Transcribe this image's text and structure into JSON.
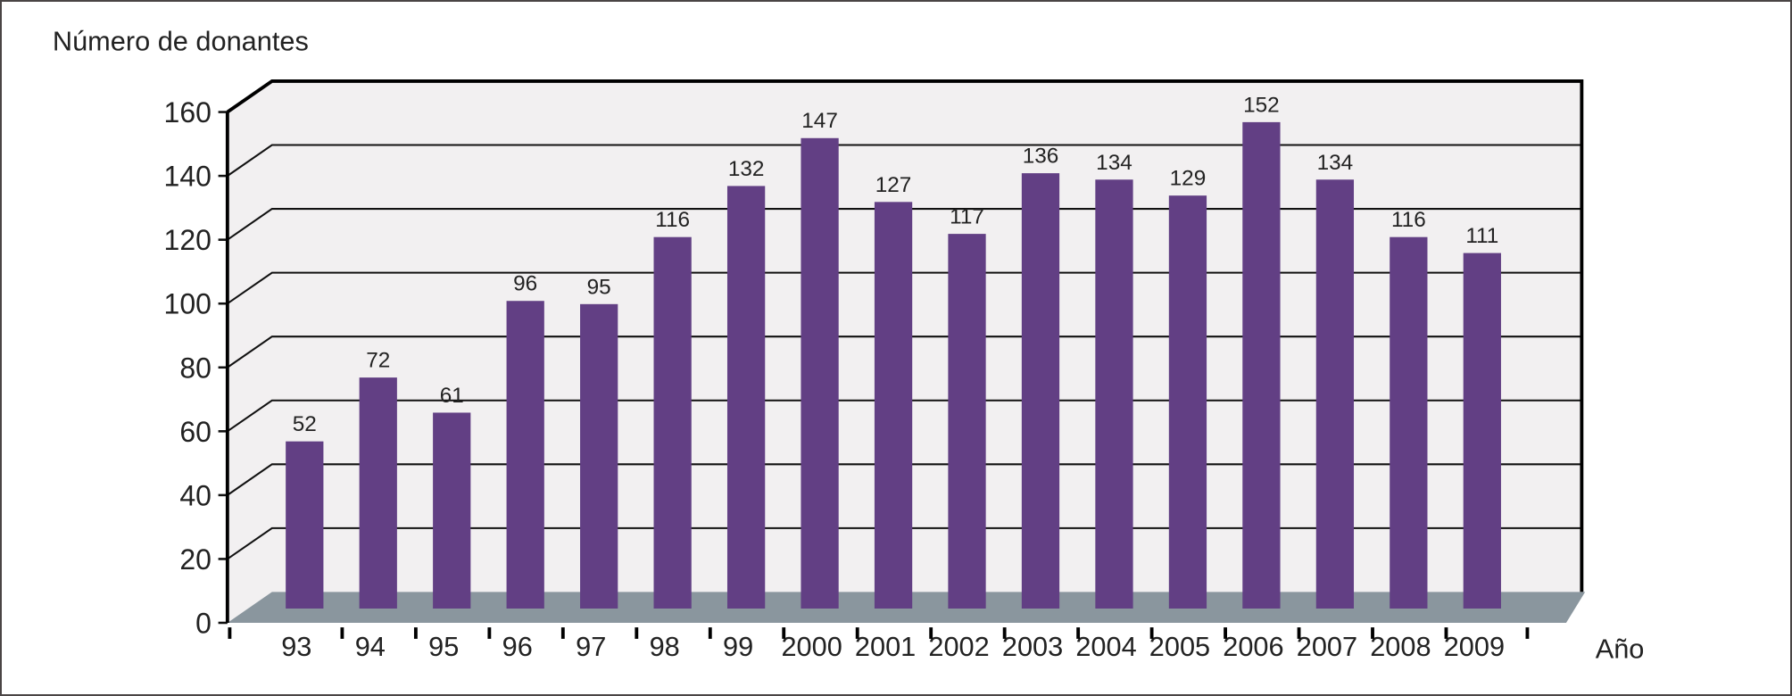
{
  "chart_data": {
    "type": "bar",
    "title": "",
    "ylabel": "Número de donantes",
    "xlabel": "Año",
    "ylim": [
      0,
      160
    ],
    "yticks": [
      0,
      20,
      40,
      60,
      80,
      100,
      120,
      140,
      160
    ],
    "grid": true,
    "categories": [
      "93",
      "94",
      "95",
      "96",
      "97",
      "98",
      "99",
      "2000",
      "2001",
      "2002",
      "2003",
      "2004",
      "2005",
      "2006",
      "2007",
      "2008",
      "2009"
    ],
    "values": [
      52,
      72,
      61,
      96,
      95,
      116,
      132,
      147,
      127,
      117,
      136,
      134,
      129,
      152,
      134,
      116,
      111
    ],
    "bar_color": "#623f84",
    "wall_color": "#f2f0f1",
    "floor_color": "#8a969e"
  }
}
